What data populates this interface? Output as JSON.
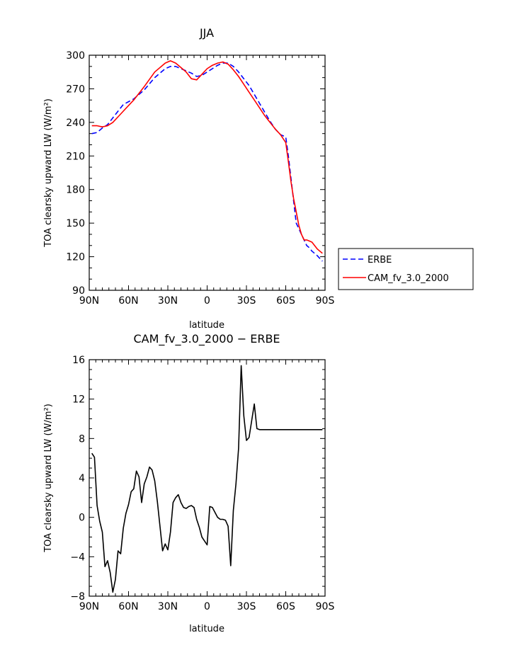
{
  "chart_data": [
    {
      "type": "line",
      "title": "JJA",
      "xlabel": "latitude",
      "ylabel": "TOA clearsky upward LW (W/m²)",
      "xlim": [
        90,
        -90
      ],
      "ylim": [
        90,
        300
      ],
      "xticks": [
        90,
        60,
        30,
        0,
        -30,
        -60,
        -90
      ],
      "xtick_labels": [
        "90N",
        "60N",
        "30N",
        "0",
        "30S",
        "60S",
        "90S"
      ],
      "yticks": [
        90,
        120,
        150,
        180,
        210,
        240,
        270,
        300
      ],
      "ytick_labels": [
        "90",
        "120",
        "150",
        "180",
        "210",
        "240",
        "270",
        "300"
      ],
      "legend_position": "right-outside",
      "series": [
        {
          "name": "ERBE",
          "color": "#0000ff",
          "dash": "dashed",
          "x": [
            88,
            84,
            80,
            76,
            72,
            68,
            64,
            56,
            48,
            40,
            32,
            28,
            24,
            20,
            16,
            12,
            8,
            4,
            0,
            -4,
            -8,
            -12,
            -16,
            -20,
            -24,
            -28,
            -32,
            -36,
            -40,
            -44,
            -48,
            -52,
            -56,
            -60,
            -62,
            -64,
            -66,
            -68,
            -70,
            -72,
            -74,
            -76,
            -78,
            -80,
            -84,
            -88
          ],
          "y": [
            230,
            231,
            235,
            238,
            244,
            250,
            256,
            261,
            269,
            280,
            288,
            290,
            290,
            288,
            286,
            284,
            281,
            282,
            285,
            288,
            291,
            293,
            293,
            290,
            285,
            279,
            273,
            265,
            257,
            249,
            241,
            234,
            229,
            227,
            210,
            190,
            170,
            150,
            145,
            140,
            135,
            130,
            128,
            125,
            121,
            116
          ]
        },
        {
          "name": "CAM_fv_3.0_2000",
          "color": "#ff0000",
          "dash": "solid",
          "x": [
            88,
            84,
            80,
            76,
            72,
            68,
            64,
            56,
            48,
            40,
            32,
            28,
            24,
            20,
            16,
            12,
            8,
            4,
            0,
            -4,
            -8,
            -12,
            -16,
            -20,
            -24,
            -28,
            -32,
            -36,
            -40,
            -44,
            -48,
            -52,
            -56,
            -60,
            -62,
            -64,
            -66,
            -68,
            -70,
            -72,
            -74,
            -76,
            -78,
            -80,
            -84,
            -86,
            -88
          ],
          "y": [
            237,
            237,
            236,
            237,
            240,
            245,
            250,
            260,
            272,
            285,
            293,
            295,
            293,
            289,
            285,
            279,
            278,
            283,
            288,
            291,
            293,
            294,
            292,
            287,
            281,
            274,
            267,
            260,
            253,
            246,
            240,
            234,
            229,
            222,
            205,
            187,
            172,
            160,
            148,
            140,
            135,
            135,
            134,
            133,
            127,
            125,
            123
          ]
        }
      ]
    },
    {
      "type": "line",
      "title": "CAM_fv_3.0_2000 − ERBE",
      "xlabel": "latitude",
      "ylabel": "TOA clearsky upward LW (W/m²)",
      "xlim": [
        90,
        -90
      ],
      "ylim": [
        -8,
        16
      ],
      "xticks": [
        90,
        60,
        30,
        0,
        -30,
        -60,
        -90
      ],
      "xtick_labels": [
        "90N",
        "60N",
        "30N",
        "0",
        "30S",
        "60S",
        "90S"
      ],
      "yticks": [
        -8,
        -4,
        0,
        4,
        8,
        12,
        16
      ],
      "ytick_labels": [
        "−8",
        "−4",
        "0",
        "4",
        "8",
        "12",
        "16"
      ],
      "series": [
        {
          "color": "#000000",
          "dash": "solid",
          "x": [
            88,
            86,
            84,
            82,
            80,
            78,
            76,
            74,
            72,
            70,
            68,
            66,
            64,
            62,
            60,
            58,
            56,
            54,
            52,
            50,
            48,
            46,
            44,
            42,
            40,
            38,
            36,
            34,
            32,
            30,
            28,
            26,
            24,
            22,
            20,
            18,
            16,
            14,
            12,
            10,
            8,
            6,
            4,
            2,
            0,
            -2,
            -4,
            -6,
            -8,
            -10,
            -12,
            -14,
            -16,
            -18,
            -20,
            -22,
            -24,
            -26,
            -28,
            -30,
            -32,
            -34,
            -36,
            -38,
            -40,
            -42,
            -44,
            -46,
            -48,
            -50,
            -52,
            -54,
            -56,
            -58,
            -60,
            -62,
            -64,
            -66,
            -68,
            -70,
            -72,
            -74,
            -76,
            -78,
            -80,
            -82,
            -84,
            -86,
            -88
          ],
          "y": [
            6.5,
            6.1,
            1.2,
            -0.4,
            -1.5,
            -5.0,
            -4.4,
            -5.6,
            -7.6,
            -6.3,
            -3.4,
            -3.7,
            -1.1,
            0.4,
            1.3,
            2.6,
            2.9,
            4.7,
            4.1,
            1.5,
            3.4,
            4.1,
            5.1,
            4.8,
            3.7,
            1.6,
            -0.9,
            -3.4,
            -2.7,
            -3.3,
            -1.5,
            1.5,
            2.0,
            2.3,
            1.5,
            1.0,
            0.9,
            1.1,
            1.2,
            1.0,
            -0.2,
            -1.0,
            -2.0,
            -2.4,
            -2.8,
            1.1,
            1.0,
            0.5,
            0.0,
            -0.2,
            -0.2,
            -0.3,
            -0.9,
            -4.9,
            0.7,
            3.4,
            7.0,
            15.4,
            10.3,
            7.8,
            8.1,
            9.8,
            11.5,
            9.0,
            8.9,
            8.9,
            8.9,
            8.9,
            8.9,
            8.9,
            8.9,
            8.9,
            8.9,
            8.9,
            8.9,
            8.9,
            8.9,
            8.9,
            8.9,
            8.9,
            8.9,
            8.9,
            8.9,
            8.9,
            8.9,
            8.9,
            8.9,
            8.9,
            8.9
          ]
        }
      ]
    }
  ]
}
